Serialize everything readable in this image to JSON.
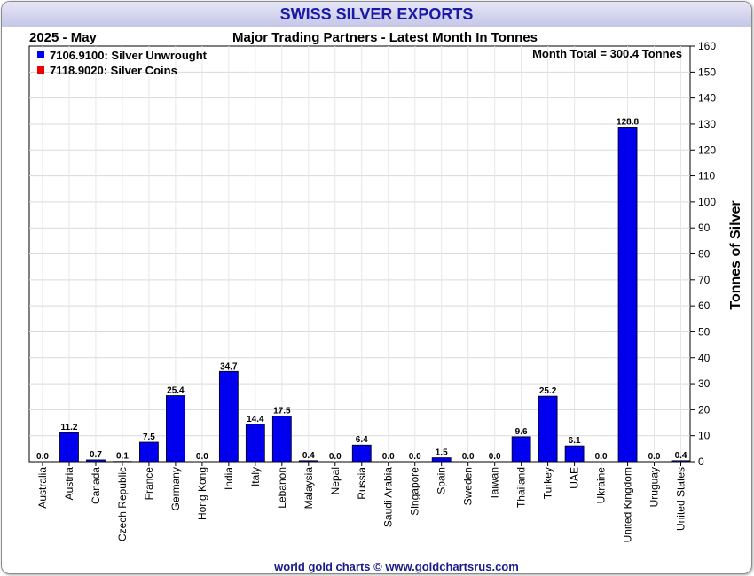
{
  "header": {
    "title": "SWISS SILVER EXPORTS",
    "period": "2025 - May",
    "subtitle": "Major Trading Partners - Latest Month In Tonnes"
  },
  "legend": [
    {
      "label": "7106.9100: Silver Unwrought",
      "color": "#0000ee"
    },
    {
      "label": "7118.9020: Silver Coins",
      "color": "#ee0000"
    }
  ],
  "annotation": "Month Total = 300.4 Tonnes",
  "footer": "world gold charts © www.goldchartsrus.com",
  "chart_data": {
    "type": "bar",
    "title": "SWISS SILVER EXPORTS",
    "subtitle": "Major Trading Partners - Latest Month In Tonnes",
    "xlabel": "",
    "ylabel": "Tonnes of Silver",
    "ylim": [
      0,
      160
    ],
    "yticks": [
      0,
      10,
      20,
      30,
      40,
      50,
      60,
      70,
      80,
      90,
      100,
      110,
      120,
      130,
      140,
      150,
      160
    ],
    "grid": true,
    "legend_position": "top-left",
    "categories": [
      "Australia",
      "Austria",
      "Canada",
      "Czech Republic",
      "France",
      "Germany",
      "Hong Kong",
      "India",
      "Italy",
      "Lebanon",
      "Malaysia",
      "Nepal",
      "Russia",
      "Saudi Arabia",
      "Singapore",
      "Spain",
      "Sweden",
      "Taiwan",
      "Thailand",
      "Turkey",
      "UAE",
      "Ukraine",
      "United Kingdom",
      "Uruguay",
      "United States"
    ],
    "values": [
      0.0,
      11.2,
      0.7,
      0.1,
      7.5,
      25.4,
      0.0,
      34.7,
      14.4,
      17.5,
      0.4,
      0.0,
      6.4,
      0.0,
      0.0,
      1.5,
      0.0,
      0.0,
      9.6,
      25.2,
      6.1,
      0.0,
      128.8,
      0.0,
      0.4
    ],
    "value_labels": [
      "0.0",
      "11.2",
      "0.7",
      "0.1",
      "7.5",
      "25.4",
      "0.0",
      "34.7",
      "14.4",
      "17.5",
      "0.4",
      "0.0",
      "6.4",
      "0.0",
      "0.0",
      "1.5",
      "0.0",
      "0.0",
      "9.6",
      "25.2",
      "6.1",
      "0.0",
      "128.8",
      "0.0",
      "0.4"
    ],
    "bar_color": "#0000ee"
  }
}
